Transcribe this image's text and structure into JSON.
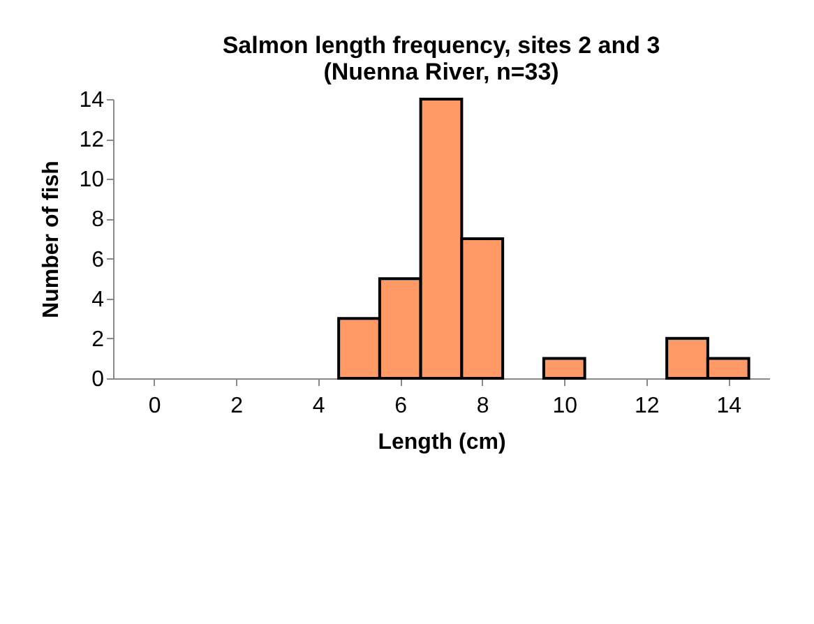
{
  "chart_data": {
    "type": "histogram",
    "title": "Salmon length frequency, sites 2 and 3\n(Nuenna River, n=33)",
    "xlabel": "Length (cm)",
    "ylabel": "Number of fish",
    "bins": [
      4.5,
      5.5,
      6.5,
      7.5,
      8.5,
      9.5,
      10.5,
      11.5,
      12.5,
      13.5,
      14.5
    ],
    "values": [
      3,
      5,
      14,
      7,
      0,
      1,
      0,
      0,
      2,
      1
    ],
    "color": "#ff9966",
    "xlim": [
      -1,
      15
    ],
    "xticks": [
      0,
      2,
      4,
      6,
      8,
      10,
      12,
      14
    ],
    "ylim": [
      0,
      14
    ],
    "yticks": [
      0,
      2,
      4,
      6,
      8,
      10,
      12,
      14
    ],
    "grid": false
  }
}
